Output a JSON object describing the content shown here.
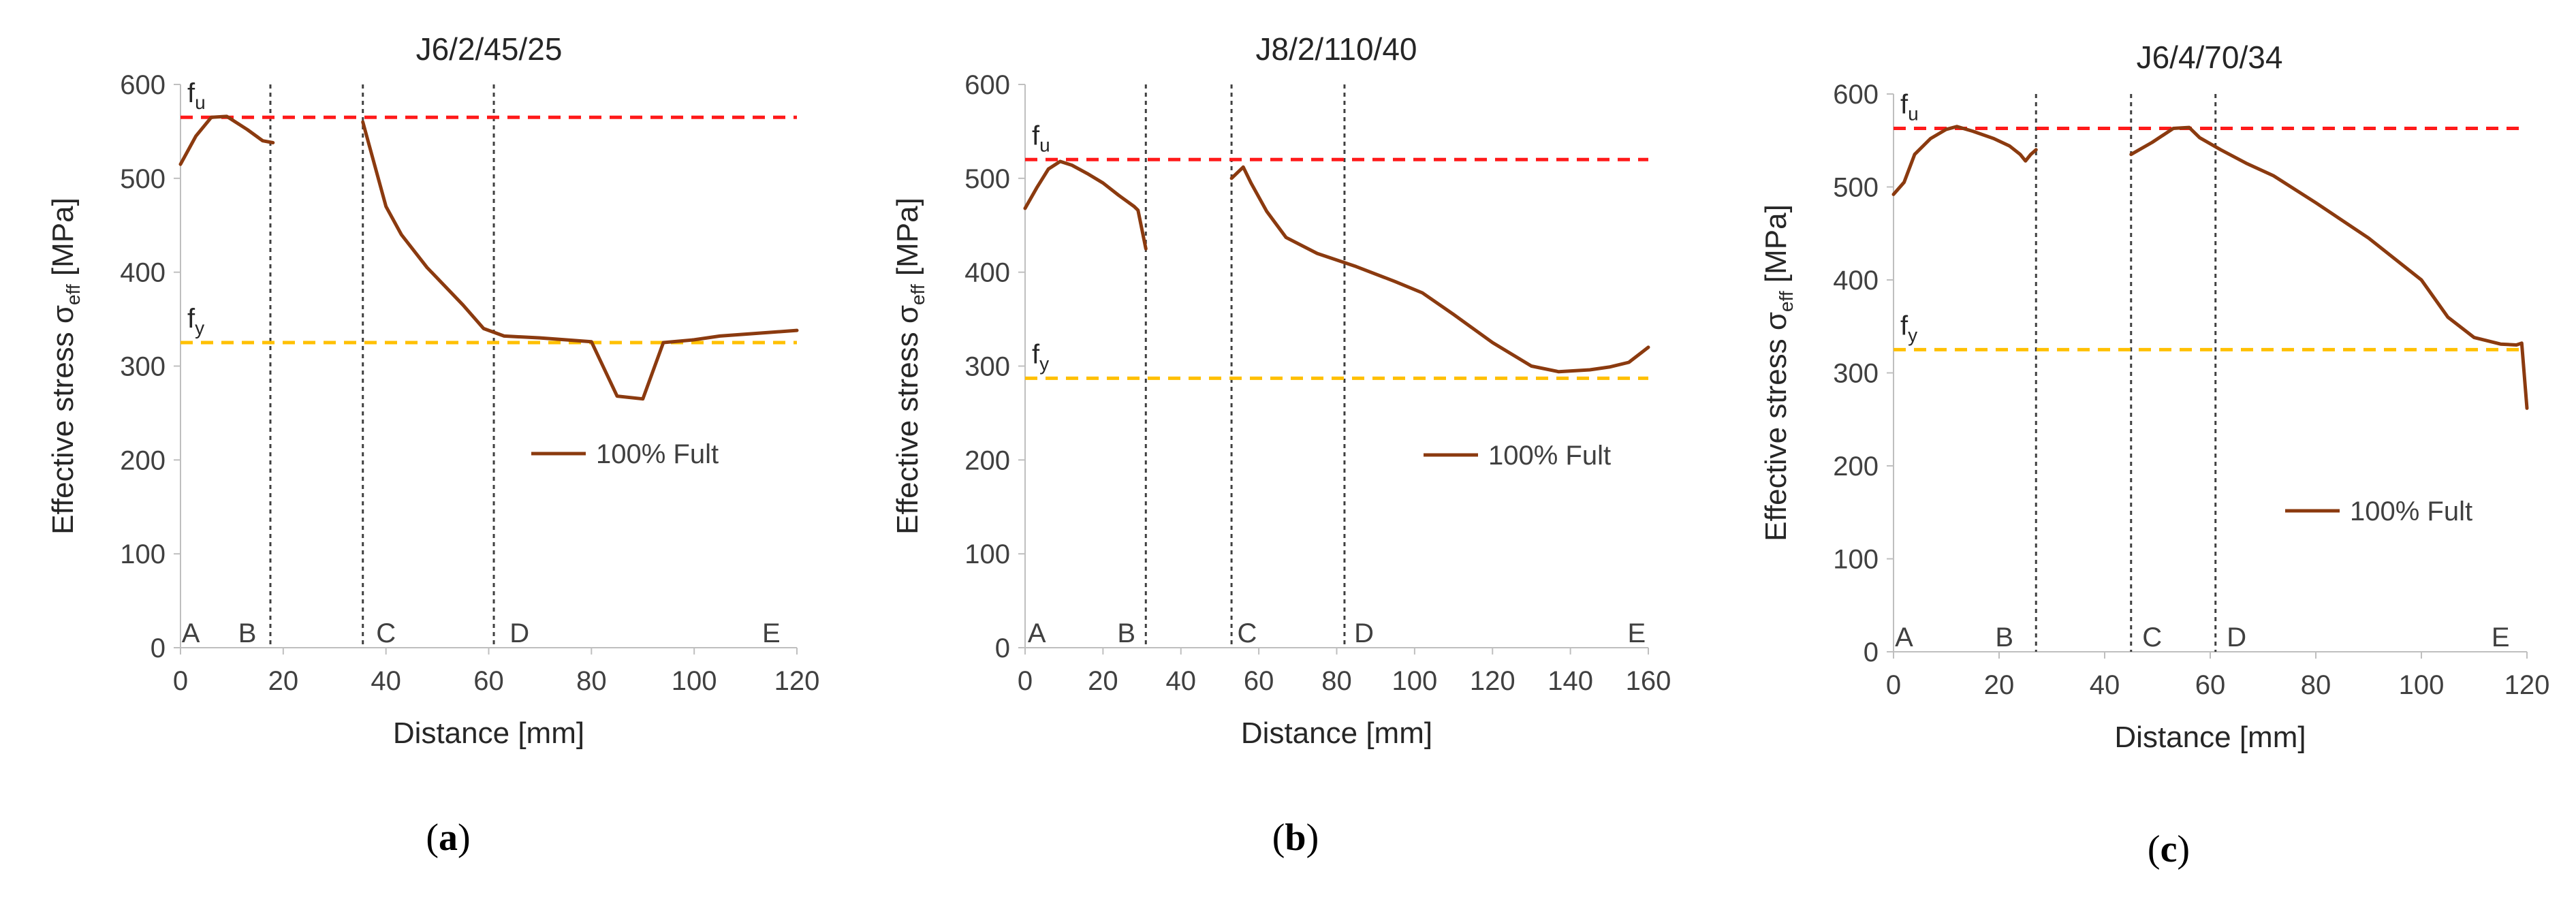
{
  "chart_data": [
    {
      "type": "line",
      "title": "J6/2/45/25",
      "caption_letter": "a",
      "xlabel": "Distance [mm]",
      "ylabel_main": "Effective stress σ",
      "ylabel_sub": "eff",
      "ylabel_unit": " [MPa]",
      "xlim": [
        0,
        120
      ],
      "ylim": [
        0,
        600
      ],
      "xticks": [
        0,
        20,
        40,
        60,
        80,
        100,
        120
      ],
      "yticks": [
        0,
        100,
        200,
        300,
        400,
        500,
        600
      ],
      "fu": 565,
      "fy": 325,
      "fu_label": "f",
      "fu_sub": "u",
      "fy_label": "f",
      "fy_sub": "y",
      "colors": {
        "curve": "#8B3A0F",
        "fu": "#FF1A1A",
        "fy": "#FFC000",
        "sections": "#404040"
      },
      "section_lines": [
        17.5,
        35.5,
        61
      ],
      "points": [
        {
          "label": "A",
          "x": 2
        },
        {
          "label": "B",
          "x": 13
        },
        {
          "label": "C",
          "x": 40
        },
        {
          "label": "D",
          "x": 66
        },
        {
          "label": "E",
          "x": 115
        }
      ],
      "legend": "100% Fult",
      "series": [
        {
          "name": "100% Fult",
          "segments": [
            [
              [
                0,
                515
              ],
              [
                3,
                545
              ],
              [
                6,
                565
              ],
              [
                9,
                566
              ],
              [
                13,
                552
              ],
              [
                16,
                540
              ],
              [
                18,
                538
              ]
            ],
            [
              [
                35.5,
                560
              ],
              [
                38,
                510
              ],
              [
                40,
                470
              ],
              [
                43,
                440
              ],
              [
                48,
                405
              ],
              [
                55,
                365
              ],
              [
                59,
                340
              ],
              [
                63,
                332
              ],
              [
                70,
                330
              ],
              [
                80,
                326
              ],
              [
                85,
                268
              ],
              [
                90,
                265
              ],
              [
                94,
                325
              ],
              [
                100,
                328
              ],
              [
                105,
                332
              ],
              [
                110,
                334
              ],
              [
                115,
                336
              ],
              [
                120,
                338
              ]
            ]
          ]
        }
      ]
    },
    {
      "type": "line",
      "title": "J8/2/110/40",
      "caption_letter": "b",
      "xlabel": "Distance [mm]",
      "ylabel_main": "Effective stress σ",
      "ylabel_sub": "eff",
      "ylabel_unit": " [MPa]",
      "xlim": [
        0,
        160
      ],
      "ylim": [
        0,
        600
      ],
      "xticks": [
        0,
        20,
        40,
        60,
        80,
        100,
        120,
        140,
        160
      ],
      "yticks": [
        0,
        100,
        200,
        300,
        400,
        500,
        600
      ],
      "fu": 520,
      "fy": 287,
      "fu_label": "f",
      "fu_sub": "u",
      "fy_label": "f",
      "fy_sub": "y",
      "colors": {
        "curve": "#8B3A0F",
        "fu": "#FF1A1A",
        "fy": "#FFC000",
        "sections": "#404040"
      },
      "section_lines": [
        31,
        53,
        82
      ],
      "points": [
        {
          "label": "A",
          "x": 3
        },
        {
          "label": "B",
          "x": 26
        },
        {
          "label": "C",
          "x": 57
        },
        {
          "label": "D",
          "x": 87
        },
        {
          "label": "E",
          "x": 157
        }
      ],
      "legend": "100% Fult",
      "series": [
        {
          "name": "100% Fult",
          "segments": [
            [
              [
                0,
                468
              ],
              [
                3,
                490
              ],
              [
                6,
                510
              ],
              [
                9,
                518
              ],
              [
                12,
                514
              ],
              [
                16,
                505
              ],
              [
                20,
                495
              ],
              [
                24,
                482
              ],
              [
                28,
                470
              ],
              [
                29,
                466
              ],
              [
                31,
                425
              ]
            ],
            [
              [
                53,
                500
              ],
              [
                56,
                512
              ],
              [
                58,
                495
              ],
              [
                62,
                465
              ],
              [
                67,
                437
              ],
              [
                75,
                420
              ],
              [
                85,
                406
              ],
              [
                95,
                390
              ],
              [
                102,
                378
              ],
              [
                110,
                355
              ],
              [
                120,
                325
              ],
              [
                130,
                300
              ],
              [
                137,
                294
              ],
              [
                145,
                296
              ],
              [
                150,
                299
              ],
              [
                155,
                304
              ],
              [
                160,
                320
              ]
            ]
          ]
        }
      ]
    },
    {
      "type": "line",
      "title": "J6/4/70/34",
      "caption_letter": "c",
      "xlabel": "Distance [mm]",
      "ylabel_main": "Effective stress σ",
      "ylabel_sub": "eff",
      "ylabel_unit": " [MPa]",
      "xlim": [
        0,
        120
      ],
      "ylim": [
        0,
        600
      ],
      "xticks": [
        0,
        20,
        40,
        60,
        80,
        100,
        120
      ],
      "yticks": [
        0,
        100,
        200,
        300,
        400,
        500,
        600
      ],
      "fu": 563,
      "fy": 325,
      "fu_label": "f",
      "fu_sub": "u",
      "fy_label": "f",
      "fy_sub": "y",
      "colors": {
        "curve": "#8B3A0F",
        "fu": "#FF1A1A",
        "fy": "#FFC000",
        "sections": "#404040"
      },
      "section_lines": [
        27,
        45,
        61
      ],
      "points": [
        {
          "label": "A",
          "x": 2
        },
        {
          "label": "B",
          "x": 21
        },
        {
          "label": "C",
          "x": 49
        },
        {
          "label": "D",
          "x": 65
        },
        {
          "label": "E",
          "x": 115
        }
      ],
      "legend": "100% Fult",
      "series": [
        {
          "name": "100% Fult",
          "segments": [
            [
              [
                0,
                492
              ],
              [
                2,
                505
              ],
              [
                4,
                535
              ],
              [
                7,
                552
              ],
              [
                10,
                562
              ],
              [
                12,
                565
              ],
              [
                15,
                560
              ],
              [
                19,
                552
              ],
              [
                22,
                544
              ],
              [
                24,
                535
              ],
              [
                25,
                528
              ],
              [
                26,
                535
              ],
              [
                27,
                540
              ]
            ],
            [
              [
                45,
                535
              ],
              [
                49,
                548
              ],
              [
                53,
                563
              ],
              [
                56,
                564
              ],
              [
                58,
                553
              ],
              [
                62,
                540
              ],
              [
                67,
                525
              ],
              [
                72,
                512
              ],
              [
                80,
                483
              ],
              [
                90,
                445
              ],
              [
                100,
                400
              ],
              [
                105,
                360
              ],
              [
                110,
                338
              ],
              [
                115,
                331
              ],
              [
                118,
                330
              ],
              [
                119,
                332
              ],
              [
                120,
                262
              ]
            ]
          ]
        }
      ]
    }
  ]
}
